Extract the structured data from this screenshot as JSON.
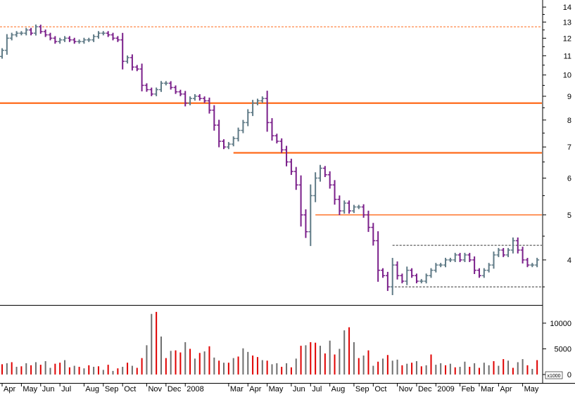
{
  "chart_data": [
    {
      "type": "ohlc",
      "scale": "log",
      "ylim": [
        3.2,
        14.5
      ],
      "y_ticks": [
        4,
        5,
        6,
        7,
        8,
        9,
        10,
        11,
        12,
        13,
        14
      ],
      "x_ticks": [
        "Apr",
        "May",
        "Jun",
        "Jul",
        "Aug",
        "Sep",
        "Oct",
        "Nov",
        "Dec",
        "2008",
        "Mar",
        "Apr",
        "May",
        "Jun",
        "Jul",
        "Aug",
        "Sep",
        "Oct",
        "Nov",
        "Dec",
        "2009",
        "Feb",
        "Mar",
        "Apr",
        "May"
      ],
      "x_tick_pos": [
        0,
        4,
        8,
        12,
        17,
        21,
        25,
        30,
        34,
        38,
        47,
        51,
        55,
        60,
        64,
        68,
        73,
        77,
        82,
        86,
        90,
        95,
        99,
        103,
        108
      ],
      "n_bars": 112,
      "colors": {
        "up": "#5f7a86",
        "down": "#7a1f8a"
      },
      "closes": [
        11.3,
        12.0,
        12.2,
        12.3,
        12.3,
        12.5,
        12.3,
        12.7,
        12.4,
        12.2,
        12.0,
        11.8,
        11.9,
        12.0,
        11.9,
        11.8,
        11.8,
        11.9,
        11.9,
        12.1,
        12.3,
        12.3,
        12.2,
        12.0,
        11.9,
        10.7,
        10.9,
        10.4,
        10.3,
        9.5,
        9.3,
        9.1,
        9.3,
        9.6,
        9.6,
        9.4,
        9.2,
        9.1,
        8.7,
        8.9,
        9.0,
        8.9,
        8.8,
        8.4,
        7.8,
        7.2,
        7.0,
        7.1,
        7.3,
        7.6,
        7.9,
        8.3,
        8.7,
        8.8,
        8.9,
        7.9,
        7.4,
        7.2,
        6.9,
        6.5,
        6.2,
        5.8,
        5.0,
        4.6,
        5.5,
        6.0,
        6.3,
        6.1,
        5.8,
        5.4,
        5.1,
        5.3,
        5.1,
        5.2,
        5.2,
        5.0,
        4.7,
        4.4,
        3.8,
        3.7,
        3.5,
        3.9,
        3.7,
        3.6,
        3.8,
        3.7,
        3.6,
        3.6,
        3.7,
        3.8,
        3.9,
        3.9,
        4.0,
        4.0,
        4.1,
        4.0,
        4.1,
        4.0,
        3.8,
        3.7,
        3.8,
        3.9,
        4.1,
        4.2,
        4.1,
        4.2,
        4.4,
        4.2,
        4.0,
        3.9,
        3.9,
        4.0
      ],
      "volume_ylim": [
        0,
        13000
      ],
      "volume_ticks": [
        0,
        5000,
        10000
      ],
      "volume_label": "x1000",
      "volume_colors": {
        "red": "#e00000",
        "grey": "#6e6e6e"
      },
      "volume": [
        2000,
        2200,
        2400,
        1500,
        1600,
        2200,
        1800,
        2400,
        1900,
        2600,
        1300,
        2100,
        2300,
        2800,
        1400,
        1700,
        1500,
        1200,
        1800,
        1500,
        1600,
        900,
        1900,
        700,
        1200,
        1500,
        2300,
        1700,
        1300,
        3200,
        5700,
        11800,
        12200,
        7400,
        3200,
        4600,
        4700,
        4300,
        6300,
        5000,
        3100,
        4200,
        4500,
        5500,
        3300,
        2700,
        2300,
        2300,
        3200,
        3500,
        5100,
        4400,
        3700,
        3400,
        2800,
        2700,
        2000,
        2200,
        1500,
        2200,
        1400,
        3100,
        5600,
        5700,
        6300,
        6200,
        5600,
        4100,
        6600,
        3900,
        5000,
        8600,
        9200,
        6300,
        3200,
        3700,
        4700,
        1700,
        2500,
        3100,
        3800,
        2700,
        2900,
        1800,
        2100,
        2300,
        2600,
        1600,
        1800,
        3900,
        1900,
        2200,
        1800,
        2100,
        1400,
        1500,
        2500,
        1500,
        2200,
        1300,
        2300,
        1800,
        2600,
        1700,
        3000,
        2700,
        1300,
        2400,
        3000,
        1800,
        1100,
        2800,
        6600,
        1600
      ],
      "volume_red": [
        true,
        false,
        true,
        false,
        true,
        false,
        true,
        false,
        true,
        false,
        false,
        true,
        true,
        false,
        true,
        false,
        true,
        false,
        true,
        false,
        true,
        false,
        true,
        false,
        true,
        false,
        true,
        false,
        true,
        true,
        false,
        false,
        true,
        false,
        true,
        false,
        true,
        true,
        false,
        true,
        false,
        true,
        false,
        true,
        false,
        true,
        false,
        true,
        false,
        true,
        false,
        false,
        true,
        true,
        false,
        true,
        false,
        false,
        true,
        false,
        true,
        false,
        true,
        false,
        true,
        true,
        false,
        true,
        false,
        true,
        false,
        false,
        true,
        false,
        true,
        false,
        true,
        false,
        true,
        false,
        true,
        false,
        false,
        true,
        false,
        true,
        false,
        true,
        false,
        true,
        false,
        false,
        true,
        false,
        true,
        false,
        false,
        true,
        false,
        true,
        false,
        false,
        true,
        false,
        true,
        false,
        true,
        false,
        false,
        true,
        false,
        true
      ],
      "annotations": [
        {
          "type": "hline",
          "y": 12.7,
          "style": "dashed",
          "color": "#ff6a1a",
          "x_start": 0,
          "x_end": 112
        },
        {
          "type": "hline",
          "y": 8.7,
          "style": "solid",
          "color": "#ff6a1a",
          "weight": "bold",
          "x_start": 0,
          "x_end": 112
        },
        {
          "type": "hline",
          "y": 6.8,
          "style": "solid",
          "color": "#ff6a1a",
          "weight": "bold",
          "x_start": 48,
          "x_end": 112
        },
        {
          "type": "hline",
          "y": 5.0,
          "style": "solid",
          "color": "#ff6a1a",
          "weight": "thin",
          "x_start": 65,
          "x_end": 112
        },
        {
          "type": "hline",
          "y": 4.3,
          "style": "dashed",
          "color": "#333333",
          "x_start": 81,
          "x_end": 112
        },
        {
          "type": "hline",
          "y": 3.5,
          "style": "dashed",
          "color": "#333333",
          "x_start": 80,
          "x_end": 112
        }
      ]
    }
  ]
}
